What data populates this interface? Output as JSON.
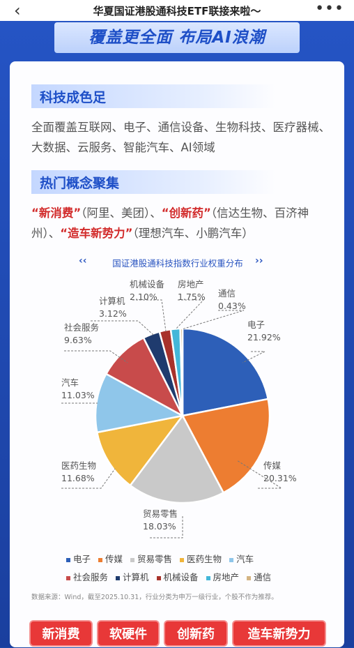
{
  "nav": {
    "back_icon": "chevron-left-icon",
    "title": "华夏国证港股通科技ETF联接来啦～",
    "more_icon": "more-dots-icon"
  },
  "hero": {
    "title": "覆盖更全面  布局AI浪潮"
  },
  "section1": {
    "heading": "科技成色足",
    "body": "全面覆盖互联网、电子、通信设备、生物科技、医疗器械、大数据、云服务、智能汽车、AI领域"
  },
  "section2": {
    "heading": "热门概念聚集",
    "c1": "“新消费”",
    "t1": "（阿里、美团）、",
    "c2": "“创新药”",
    "t2": "（信达生物、百济神州）、",
    "c3": "“造车新势力”",
    "t3": "（理想汽车、小鹏汽车）"
  },
  "chart_title": "国证港股通科技指数行业权重分布",
  "chart_data": {
    "type": "pie",
    "title": "国证港股通科技指数行业权重分布",
    "slices": [
      {
        "name": "电子",
        "value": 21.92,
        "label": "21.92%",
        "color": "#2d5fb8"
      },
      {
        "name": "传媒",
        "value": 20.31,
        "label": "20.31%",
        "color": "#ed7d31"
      },
      {
        "name": "贸易零售",
        "value": 18.03,
        "label": "18.03%",
        "color": "#c9c9c9"
      },
      {
        "name": "医药生物",
        "value": 11.68,
        "label": "11.68%",
        "color": "#f0b53b"
      },
      {
        "name": "汽车",
        "value": 11.03,
        "label": "11.03%",
        "color": "#8fc6ea"
      },
      {
        "name": "社会服务",
        "value": 9.63,
        "label": "9.63%",
        "color": "#c84b4b"
      },
      {
        "name": "计算机",
        "value": 3.12,
        "label": "3.12%",
        "color": "#1f3b6e"
      },
      {
        "name": "机械设备",
        "value": 2.1,
        "label": "2.10%",
        "color": "#a8322b"
      },
      {
        "name": "房地产",
        "value": 1.75,
        "label": "1.75%",
        "color": "#43b7d9"
      },
      {
        "name": "通信",
        "value": 0.43,
        "label": "0.43%",
        "color": "#d4b483"
      }
    ],
    "legend_rows": [
      [
        "电子",
        "传媒",
        "贸易零售",
        "医药生物",
        "汽车"
      ],
      [
        "社会服务",
        "计算机",
        "机械设备",
        "房地产",
        "通信"
      ]
    ]
  },
  "source": "数据来源：Wind，截至2025.10.31，行业分类为申万一级行业，个股不作为推荐。",
  "tags": [
    "新消费",
    "软硬件",
    "创新药",
    "造车新势力"
  ]
}
